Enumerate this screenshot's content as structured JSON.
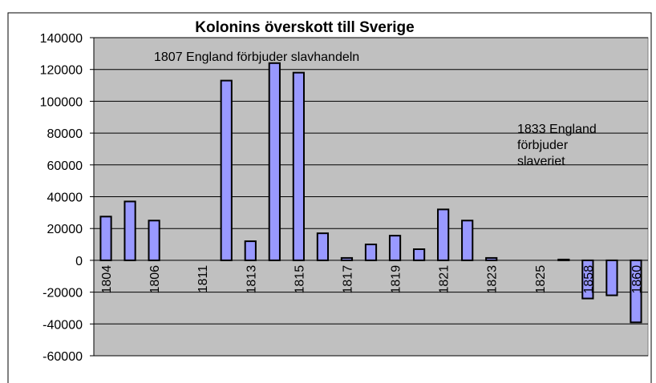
{
  "chart_data": {
    "type": "bar",
    "title": "Kolonins överskott till Sverige",
    "annotations": [
      [
        "1807 England förbjuder slavhandeln"
      ],
      [
        "1833 England",
        "förbjuder",
        "slaveriet"
      ]
    ],
    "categories": [
      "1804",
      null,
      "1806",
      null,
      "1811",
      null,
      "1813",
      null,
      "1815",
      null,
      "1817",
      null,
      "1819",
      null,
      "1821",
      null,
      "1823",
      null,
      "1825",
      null,
      "1858",
      null,
      "1860"
    ],
    "values": [
      27500,
      37000,
      25000,
      null,
      null,
      113000,
      12000,
      124000,
      118000,
      17000,
      1500,
      10000,
      15500,
      7000,
      32000,
      25000,
      1500,
      null,
      null,
      500,
      -24000,
      -22000,
      -39000
    ],
    "color": "#9999ff",
    "ylim": [
      -60000,
      140000
    ],
    "yticks": [
      -60000,
      -40000,
      -20000,
      0,
      20000,
      40000,
      60000,
      80000,
      100000,
      120000,
      140000
    ],
    "grid": true
  }
}
